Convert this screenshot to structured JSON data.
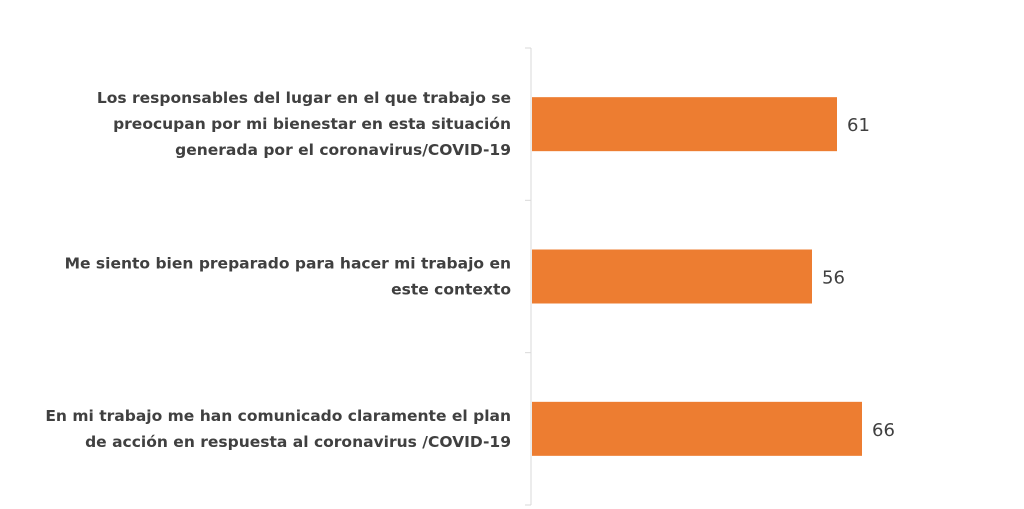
{
  "chart_data": {
    "type": "bar",
    "orientation": "horizontal",
    "categories": [
      "Los responsables del lugar en el que trabajo se preocupan por mi bienestar en esta situación generada por el coronavirus/COVID-19",
      "Me siento bien preparado para hacer mi trabajo en este contexto",
      "En mi trabajo me han comunicado claramente el plan de acción en respuesta al coronavirus /COVID-19"
    ],
    "category_lines": [
      [
        "Los responsables del lugar en el que trabajo se",
        "preocupan por mi bienestar en esta situación",
        "generada por el coronavirus/COVID-19"
      ],
      [
        "Me siento bien preparado para hacer mi trabajo en",
        "este contexto"
      ],
      [
        "En mi trabajo me han comunicado claramente el plan",
        "de acción en respuesta al coronavirus /COVID-19"
      ]
    ],
    "values": [
      61,
      56,
      66
    ],
    "data_labels": [
      "61",
      "56",
      "66"
    ],
    "xlim": [
      0,
      100
    ],
    "title": "",
    "xlabel": "",
    "ylabel": "",
    "grid": false,
    "legend": "none",
    "bar_color": "#ED7D31",
    "axis_color": "#D9D9D9",
    "label_color": "#404040"
  }
}
